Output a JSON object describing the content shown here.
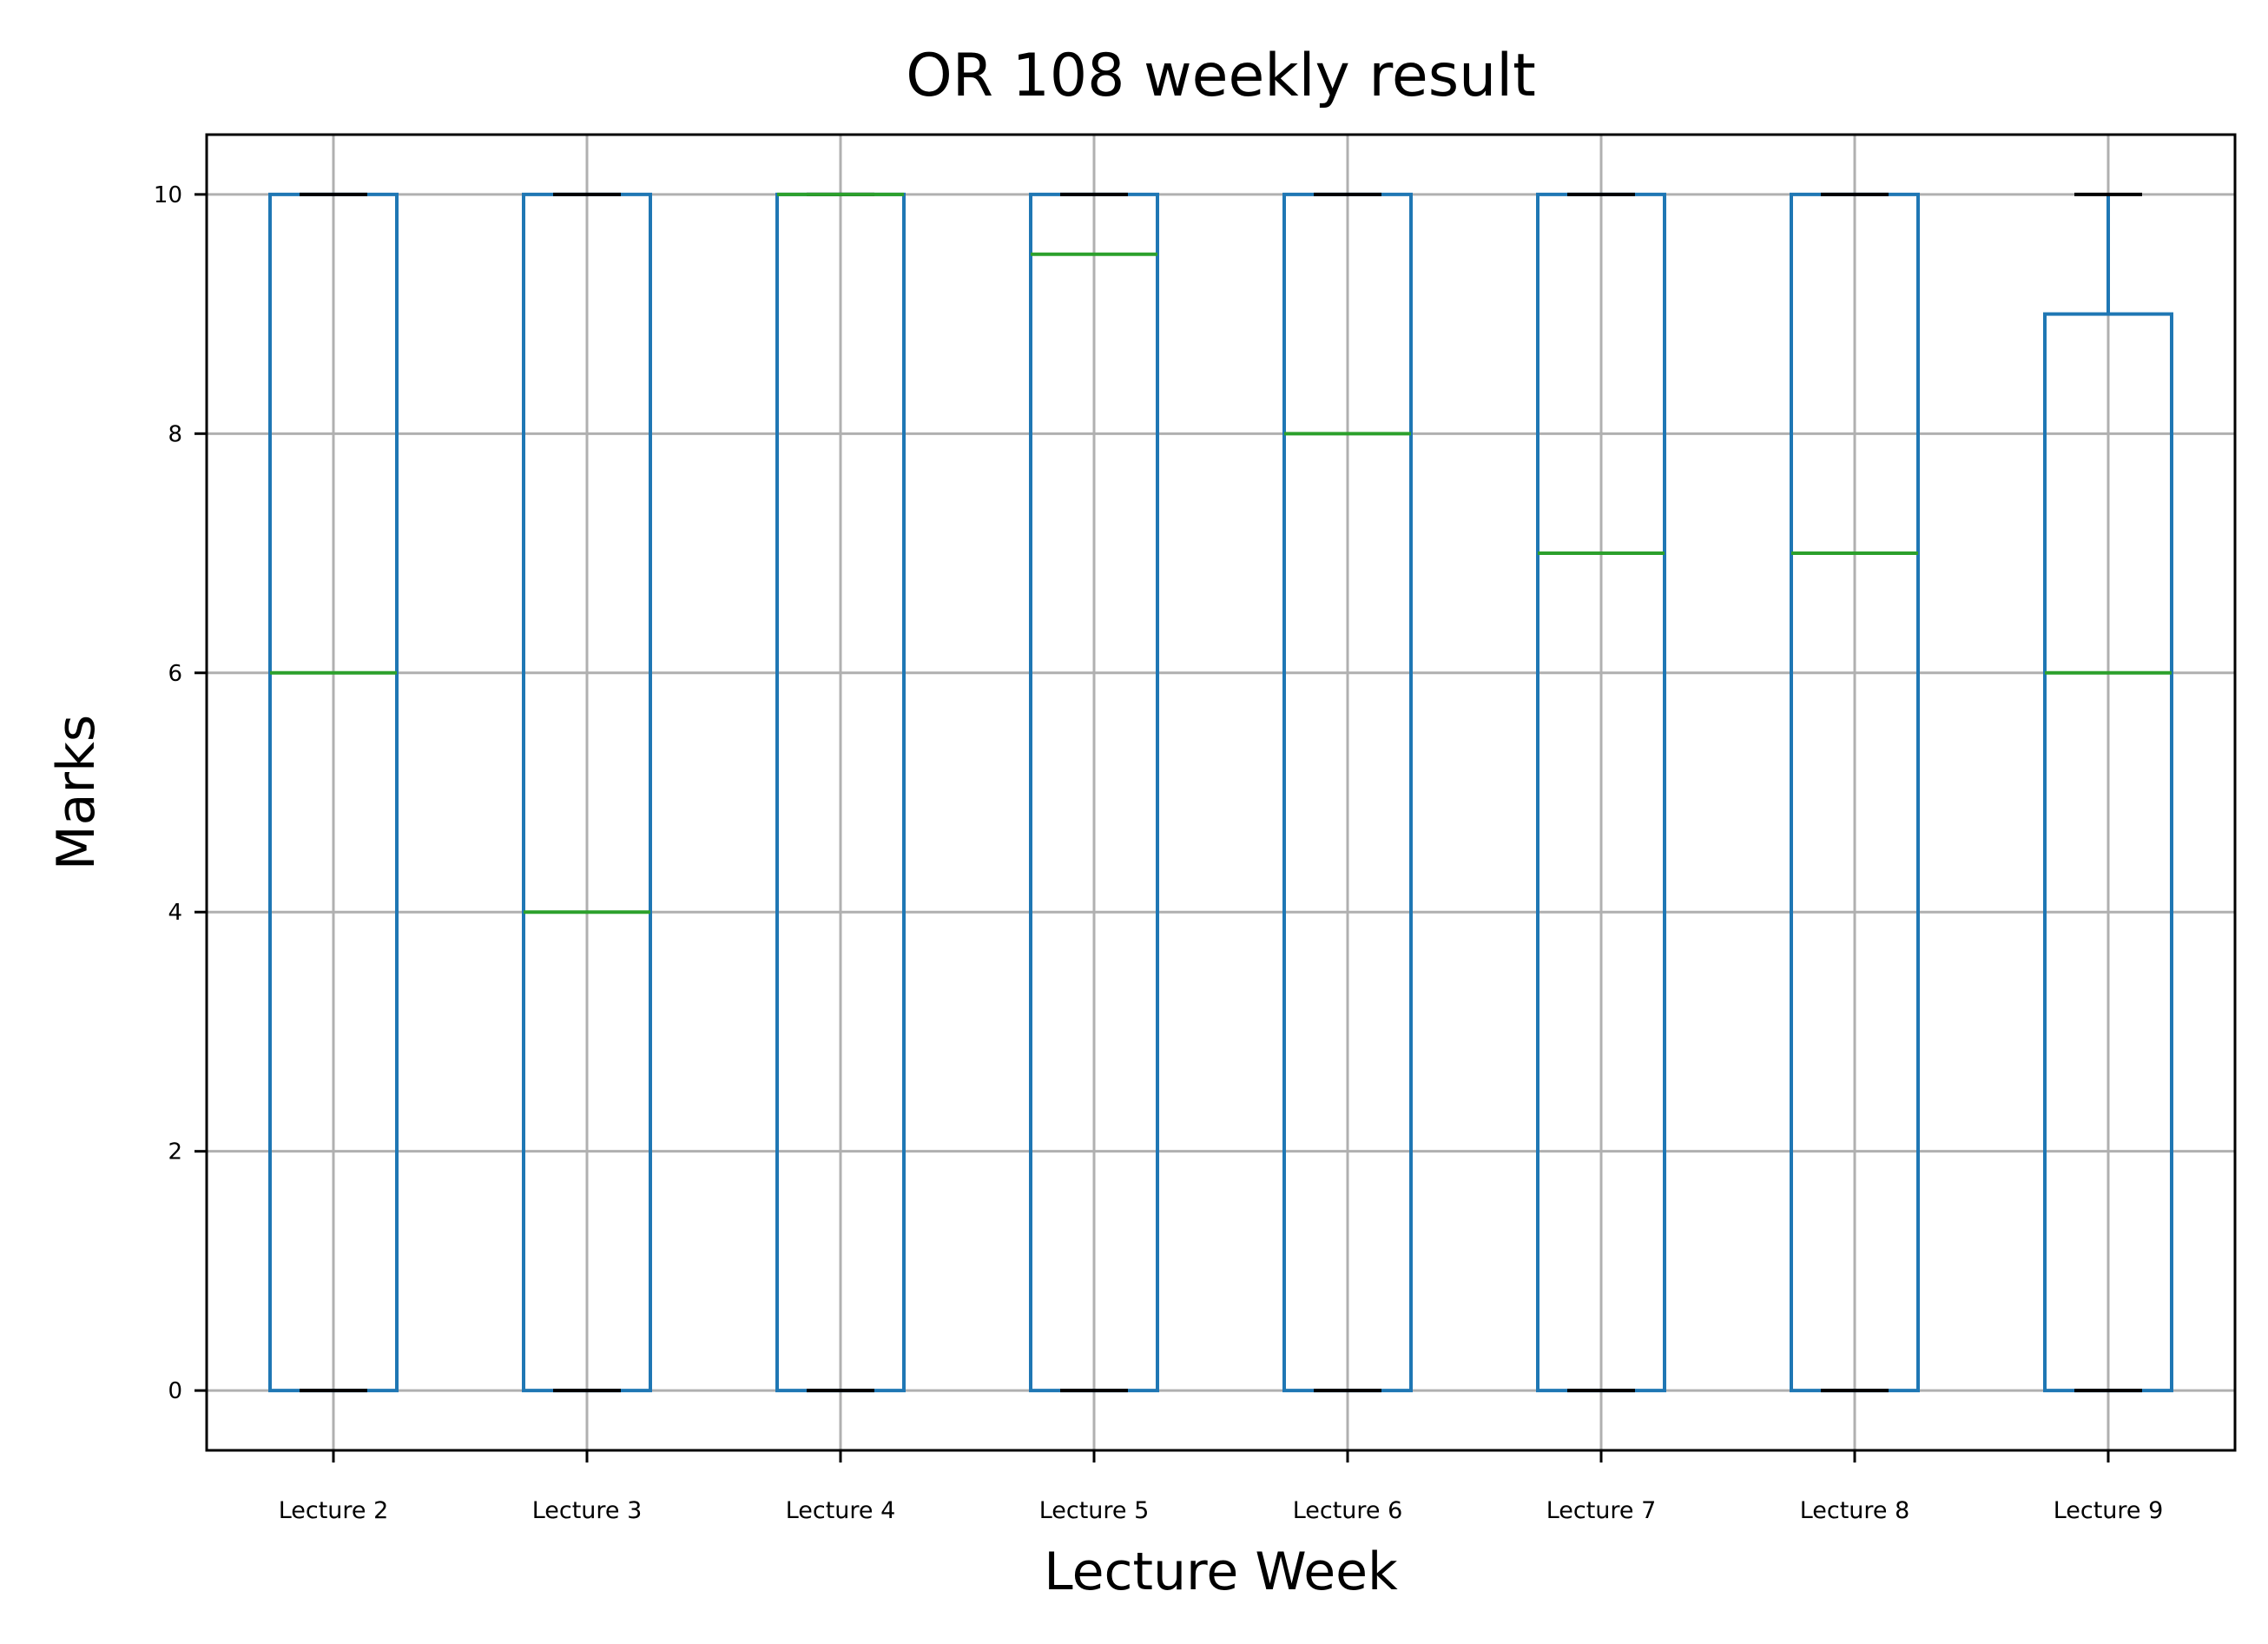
{
  "chart_data": {
    "type": "box",
    "title": "OR 108 weekly result",
    "xlabel": "Lecture Week",
    "ylabel": "Marks",
    "ylim": [
      -0.5,
      10.5
    ],
    "yticks": [
      0,
      2,
      4,
      6,
      8,
      10
    ],
    "grid": true,
    "categories": [
      "Lecture 2",
      "Lecture 3",
      "Lecture 4",
      "Lecture 5",
      "Lecture 6",
      "Lecture 7",
      "Lecture 8",
      "Lecture 9"
    ],
    "boxes": [
      {
        "whisker_low": 0,
        "q1": 0,
        "median": 6,
        "q3": 10,
        "whisker_high": 10
      },
      {
        "whisker_low": 0,
        "q1": 0,
        "median": 4,
        "q3": 10,
        "whisker_high": 10
      },
      {
        "whisker_low": 0,
        "q1": 0,
        "median": 10,
        "q3": 10,
        "whisker_high": 10
      },
      {
        "whisker_low": 0,
        "q1": 0,
        "median": 9.5,
        "q3": 10,
        "whisker_high": 10
      },
      {
        "whisker_low": 0,
        "q1": 0,
        "median": 8,
        "q3": 10,
        "whisker_high": 10
      },
      {
        "whisker_low": 0,
        "q1": 0,
        "median": 7,
        "q3": 10,
        "whisker_high": 10
      },
      {
        "whisker_low": 0,
        "q1": 0,
        "median": 7,
        "q3": 10,
        "whisker_high": 10
      },
      {
        "whisker_low": 0,
        "q1": 0,
        "median": 6,
        "q3": 9,
        "whisker_high": 10
      }
    ],
    "colors": {
      "box": "#1f77b4",
      "median": "#2ca02c",
      "cap": "#000000",
      "grid": "#b0b0b0"
    }
  }
}
